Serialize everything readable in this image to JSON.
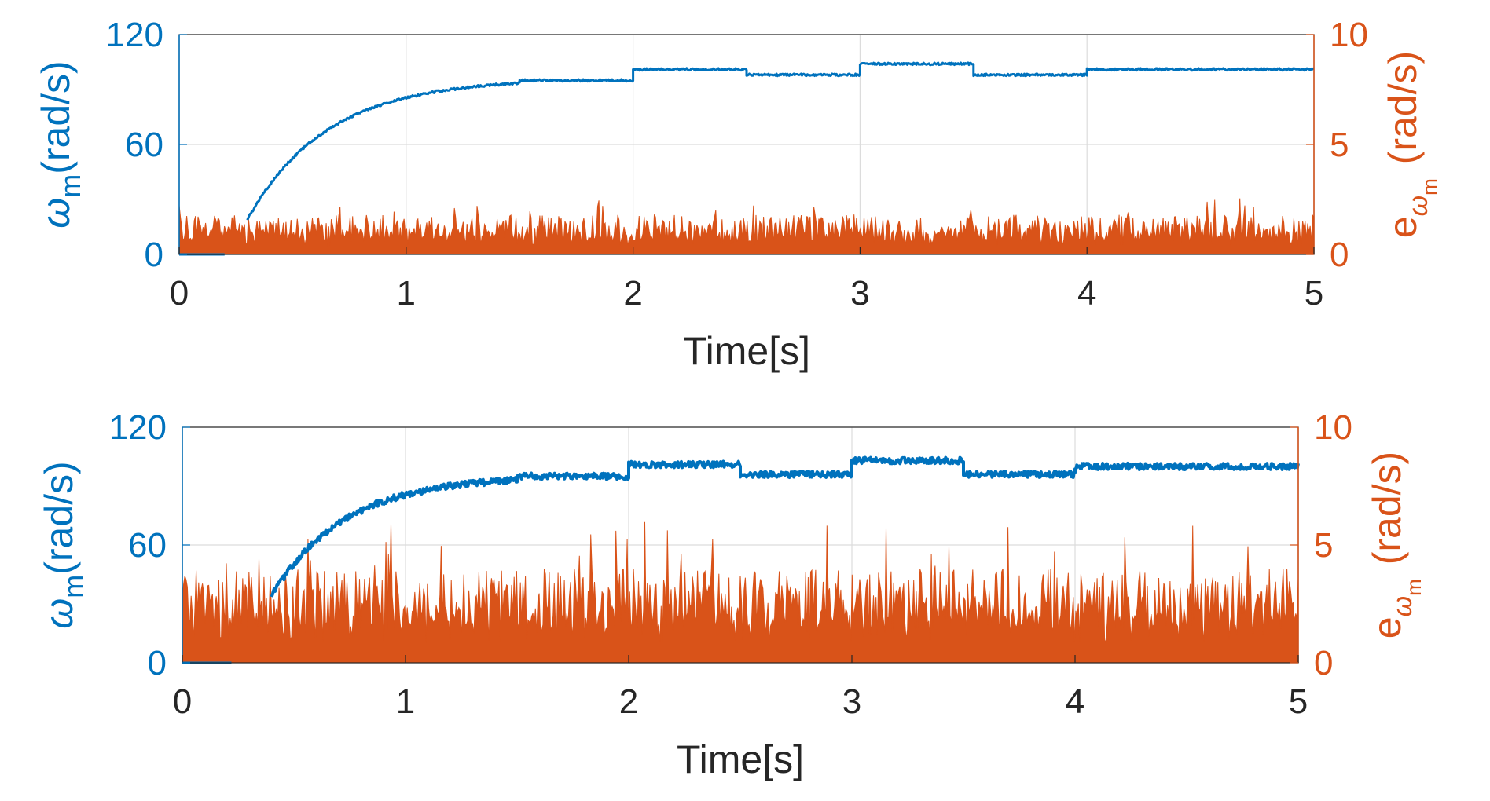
{
  "colors": {
    "left_axis": "#0072BD",
    "right_axis": "#D95319",
    "speed_line": "#0072BD",
    "error_fill": "#D95319",
    "grid": "#DCDCDC",
    "axis_frame": "#262626",
    "text": "#262626"
  },
  "chart_data": [
    {
      "type": "line",
      "panel": "top",
      "xlabel": "Time[s]",
      "ylabel_left_symbol": "ω",
      "ylabel_left_sub": "m",
      "ylabel_left_unit": "(rad/s)",
      "ylabel_right_symbol": "e",
      "ylabel_right_sub_symbol": "ω",
      "ylabel_right_sub_sub": "m",
      "ylabel_right_unit": "(rad/s)",
      "xlim": [
        0,
        5
      ],
      "ylim_left": [
        0,
        120
      ],
      "ylim_right": [
        0,
        10
      ],
      "xticks": [
        "0",
        "1",
        "2",
        "3",
        "4",
        "5"
      ],
      "yticks_left": [
        "0",
        "60",
        "120"
      ],
      "yticks_right": [
        "0",
        "5",
        "10"
      ],
      "grid": true,
      "series": [
        {
          "axis": "left",
          "start_time": 0.3,
          "segments": [
            {
              "t": [
                0,
                0.2
              ],
              "steady": 0
            },
            {
              "t": [
                0.3,
                1.5
              ],
              "rise_from": 19,
              "rise_to": 96,
              "time_constant": 0.35
            },
            {
              "t": [
                1.5,
                2.0
              ],
              "steady": 95
            },
            {
              "t": [
                2.0,
                2.5
              ],
              "steady": 101
            },
            {
              "t": [
                2.5,
                3.0
              ],
              "steady": 98
            },
            {
              "t": [
                3.0,
                3.5
              ],
              "steady": 104
            },
            {
              "t": [
                3.5,
                4.0
              ],
              "steady": 98
            },
            {
              "t": [
                4.0,
                5.0
              ],
              "steady": 101
            }
          ],
          "noise": 0.6
        },
        {
          "axis": "right",
          "kind": "error_band",
          "t": [
            0,
            5
          ],
          "typical_peak": 1.8,
          "max_peak": 2.6
        }
      ]
    },
    {
      "type": "line",
      "panel": "bottom",
      "xlabel": "Time[s]",
      "ylabel_left_symbol": "ω",
      "ylabel_left_sub": "m",
      "ylabel_left_unit": "(rad/s)",
      "ylabel_right_symbol": "e",
      "ylabel_right_sub_symbol": "ω",
      "ylabel_right_sub_sub": "m",
      "ylabel_right_unit": "(rad/s)",
      "xlim": [
        0,
        5
      ],
      "ylim_left": [
        0,
        120
      ],
      "ylim_right": [
        0,
        10
      ],
      "xticks": [
        "0",
        "1",
        "2",
        "3",
        "4",
        "5"
      ],
      "yticks_left": [
        "0",
        "60",
        "120"
      ],
      "yticks_right": [
        "0",
        "5",
        "10"
      ],
      "grid": true,
      "series": [
        {
          "axis": "left",
          "start_time": 0.4,
          "segments": [
            {
              "t": [
                0,
                0.22
              ],
              "steady": 0
            },
            {
              "t": [
                0.4,
                1.5
              ],
              "rise_from": 34,
              "rise_to": 95,
              "time_constant": 0.32
            },
            {
              "t": [
                1.5,
                2.0
              ],
              "steady": 95
            },
            {
              "t": [
                2.0,
                2.5
              ],
              "steady": 101
            },
            {
              "t": [
                2.5,
                3.0
              ],
              "steady": 96
            },
            {
              "t": [
                3.0,
                3.5
              ],
              "steady": 103
            },
            {
              "t": [
                3.5,
                4.0
              ],
              "steady": 96
            },
            {
              "t": [
                4.0,
                5.0
              ],
              "steady": 100
            }
          ],
          "noise": 1.6
        },
        {
          "axis": "right",
          "kind": "error_band",
          "t": [
            0,
            5
          ],
          "typical_peak": 4.0,
          "max_peak": 6.2
        }
      ]
    }
  ]
}
